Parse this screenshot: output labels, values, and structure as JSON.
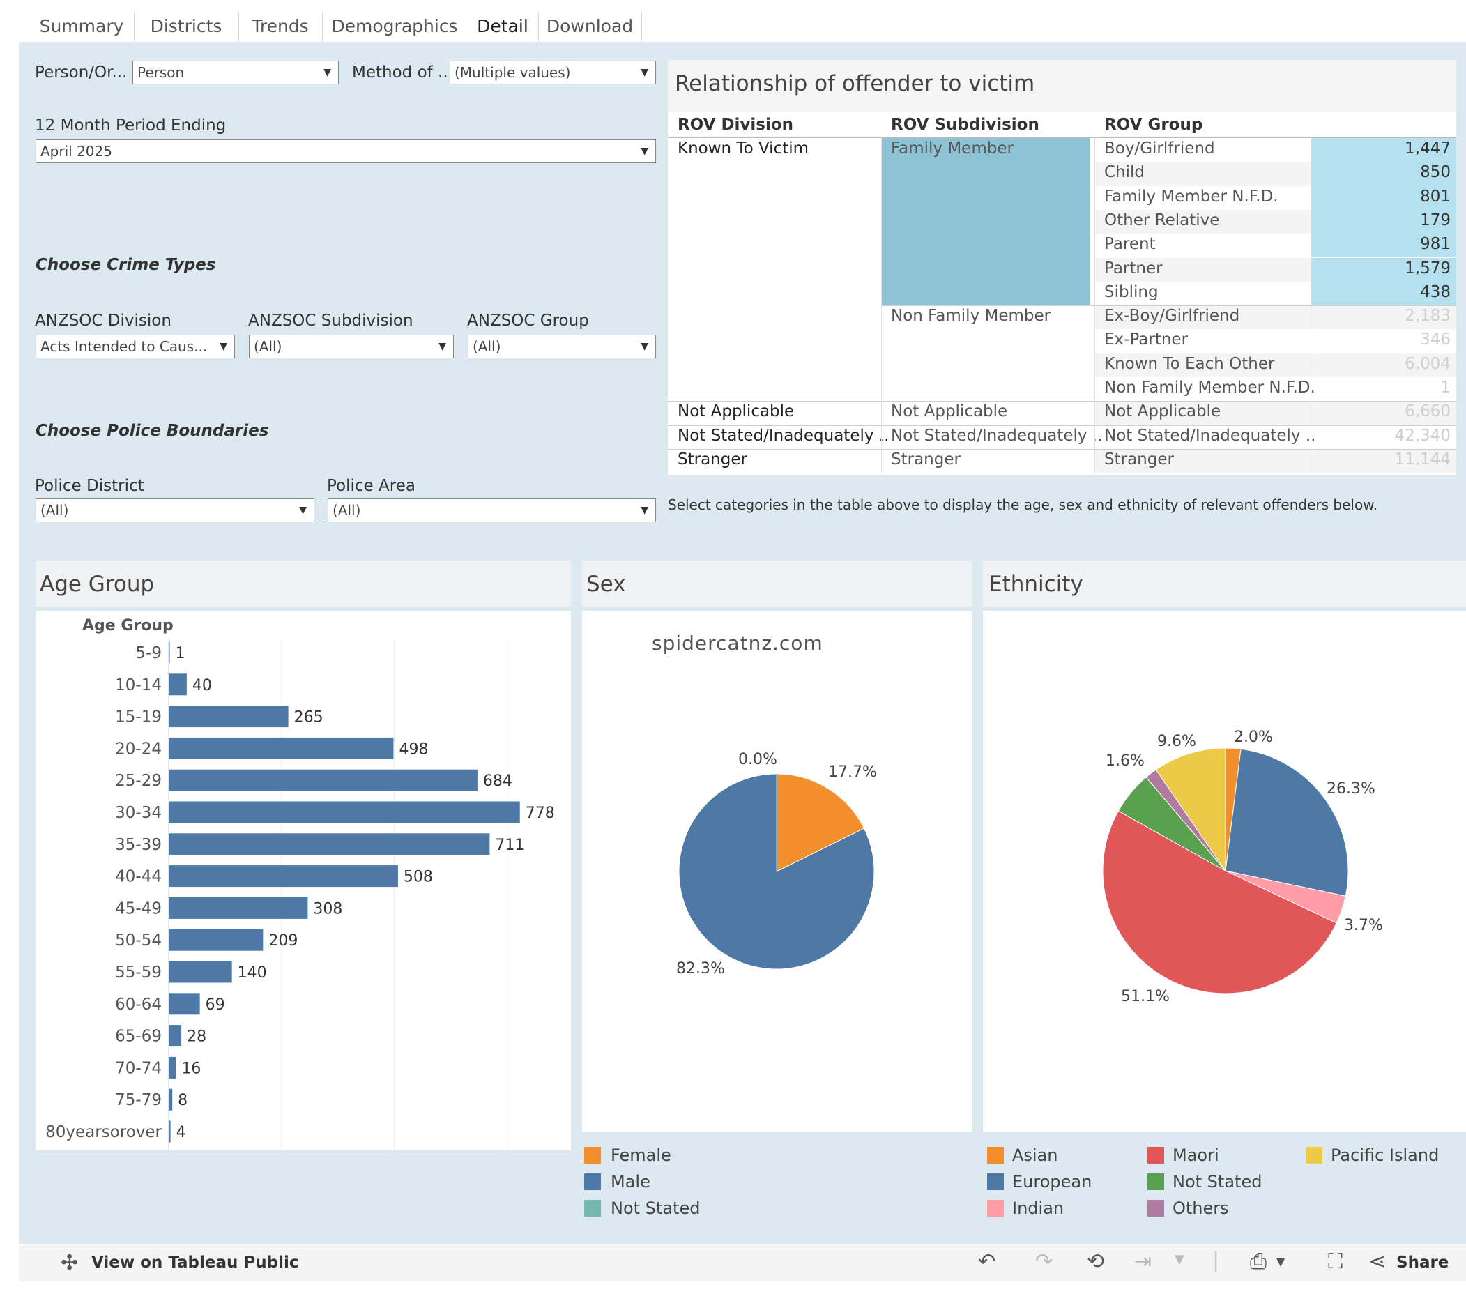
{
  "tabs": [
    "Summary",
    "Districts",
    "Trends",
    "Demographics",
    "Detail",
    "Download"
  ],
  "active_tab": "Detail",
  "filters": {
    "person_label": "Person/Or...",
    "person_value": "Person",
    "method_label": "Method of ...",
    "method_value": "(Multiple values)",
    "period_label": "12 Month Period Ending",
    "period_value": "April 2025",
    "crime_header": "Choose Crime Types",
    "anzsoc_division_label": "ANZSOC Division",
    "anzsoc_division_value": "Acts Intended to Caus...",
    "anzsoc_subdivision_label": "ANZSOC Subdivision",
    "anzsoc_subdivision_value": "(All)",
    "anzsoc_group_label": "ANZSOC Group",
    "anzsoc_group_value": "(All)",
    "police_header": "Choose Police Boundaries",
    "police_district_label": "Police District",
    "police_district_value": "(All)",
    "police_area_label": "Police Area",
    "police_area_value": "(All)"
  },
  "rov": {
    "title": "Relationship of offender to victim",
    "headers": [
      "ROV Division",
      "ROV Subdivision",
      "ROV Group"
    ],
    "rows": [
      {
        "division": "Known To Victim",
        "subdivision": "Family Member",
        "group": "Boy/Girlfriend",
        "value": "1,447",
        "selected": true
      },
      {
        "division": "",
        "subdivision": "",
        "group": "Child",
        "value": "850",
        "selected": true
      },
      {
        "division": "",
        "subdivision": "",
        "group": "Family Member N.F.D.",
        "value": "801",
        "selected": true
      },
      {
        "division": "",
        "subdivision": "",
        "group": "Other Relative",
        "value": "179",
        "selected": true
      },
      {
        "division": "",
        "subdivision": "",
        "group": "Parent",
        "value": "981",
        "selected": true
      },
      {
        "division": "",
        "subdivision": "",
        "group": "Partner",
        "value": "1,579",
        "selected": true
      },
      {
        "division": "",
        "subdivision": "",
        "group": "Sibling",
        "value": "438",
        "selected": true
      },
      {
        "division": "",
        "subdivision": "Non Family Member",
        "group": "Ex-Boy/Girlfriend",
        "value": "2,183",
        "selected": false
      },
      {
        "division": "",
        "subdivision": "",
        "group": "Ex-Partner",
        "value": "346",
        "selected": false
      },
      {
        "division": "",
        "subdivision": "",
        "group": "Known To Each Other",
        "value": "6,004",
        "selected": false
      },
      {
        "division": "",
        "subdivision": "",
        "group": "Non Family Member N.F.D.",
        "value": "1",
        "selected": false
      },
      {
        "division": "Not Applicable",
        "subdivision": "Not Applicable",
        "group": "Not Applicable",
        "value": "6,660",
        "selected": false
      },
      {
        "division": "Not Stated/Inadequately ..",
        "subdivision": "Not Stated/Inadequately ..",
        "group": "Not Stated/Inadequately ..",
        "value": "42,340",
        "selected": false
      },
      {
        "division": "Stranger",
        "subdivision": "Stranger",
        "group": "Stranger",
        "value": "11,144",
        "selected": false
      }
    ],
    "note": "Select categories in the  table above to display the age, sex and ethnicity of relevant offenders below."
  },
  "colors": {
    "bar": "#4e79a7",
    "selected_sub": "#8dc3d4",
    "selected_val": "#b5e0ee",
    "female": "#f28e2b",
    "male": "#4e79a7",
    "not_stated_sex": "#76b7b2",
    "asian": "#f28e2b",
    "european": "#4e79a7",
    "indian": "#ff9da7",
    "maori": "#e15759",
    "not_stated_eth": "#59a14f",
    "others": "#b07aa1",
    "pacific": "#edc948"
  },
  "age_panel": {
    "title": "Age Group",
    "axis_label": "Age Group"
  },
  "sex_panel": {
    "title": "Sex",
    "watermark": "spidercatnz.com"
  },
  "ethnicity_panel": {
    "title": "Ethnicity"
  },
  "chart_data": [
    {
      "type": "bar",
      "orientation": "horizontal",
      "title": "Age Group",
      "ylabel": "Age Group",
      "categories": [
        "5-9",
        "10-14",
        "15-19",
        "20-24",
        "25-29",
        "30-34",
        "35-39",
        "40-44",
        "45-49",
        "50-54",
        "55-59",
        "60-64",
        "65-69",
        "70-74",
        "75-79",
        "80yearsorover"
      ],
      "values": [
        1,
        40,
        265,
        498,
        684,
        778,
        711,
        508,
        308,
        209,
        140,
        69,
        28,
        16,
        8,
        4
      ],
      "xlim": [
        0,
        800
      ],
      "grid": true
    },
    {
      "type": "pie",
      "title": "Sex",
      "labels": [
        "Female",
        "Male",
        "Not Stated"
      ],
      "values": [
        17.7,
        82.3,
        0.0
      ],
      "value_labels": [
        "17.7%",
        "82.3%",
        "0.0%"
      ],
      "colors": [
        "#f28e2b",
        "#4e79a7",
        "#76b7b2"
      ],
      "legend": "bottom"
    },
    {
      "type": "pie",
      "title": "Ethnicity",
      "labels": [
        "Asian",
        "European",
        "Indian",
        "Maori",
        "Not Stated",
        "Others",
        "Pacific Island"
      ],
      "values": [
        2.0,
        26.3,
        3.7,
        51.1,
        5.7,
        1.6,
        9.6
      ],
      "value_labels": [
        "2.0%",
        "26.3%",
        "3.7%",
        "51.1%",
        "",
        "1.6%",
        "9.6%"
      ],
      "colors": [
        "#f28e2b",
        "#4e79a7",
        "#ff9da7",
        "#e15759",
        "#59a14f",
        "#b07aa1",
        "#edc948"
      ],
      "legend": "bottom"
    }
  ],
  "toolbar": {
    "view_label": "View on Tableau Public",
    "share_label": "Share"
  }
}
